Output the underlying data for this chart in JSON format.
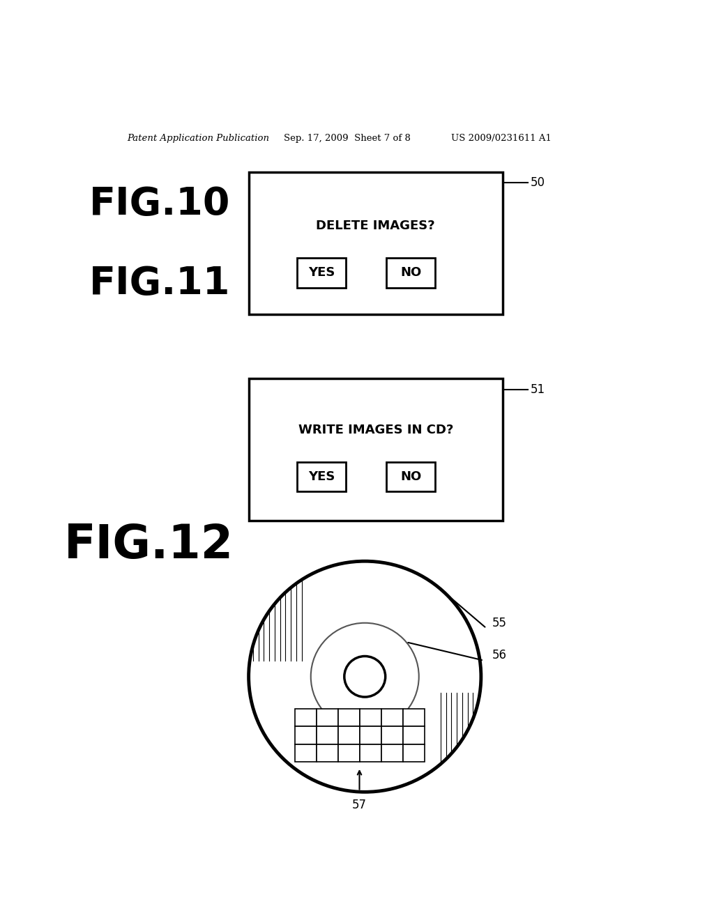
{
  "bg_color": "#ffffff",
  "header_left": "Patent Application Publication",
  "header_mid": "Sep. 17, 2009  Sheet 7 of 8",
  "header_right": "US 2009/0231611 A1",
  "fig10_label": "FIG.10",
  "fig10_ref": "50",
  "fig10_question": "DELETE IMAGES?",
  "fig11_label": "FIG.11",
  "fig11_ref": "51",
  "fig11_question": "WRITE IMAGES IN CD?",
  "fig12_label": "FIG.12",
  "fig12_ref_outer": "55",
  "fig12_ref_inner": "56",
  "fig12_ref_grid": "57",
  "btn_yes": "YES",
  "btn_no": "NO"
}
